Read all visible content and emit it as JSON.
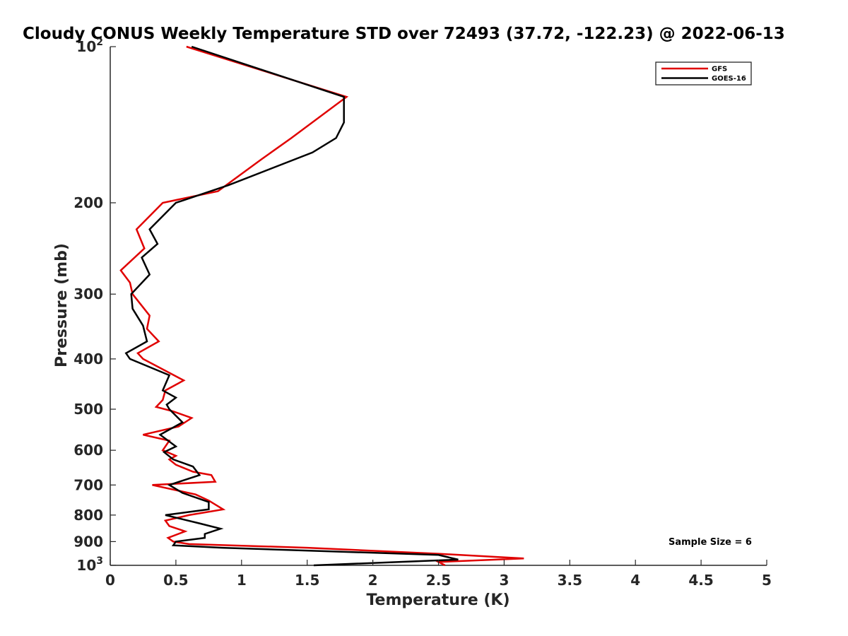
{
  "chart_data": {
    "type": "line",
    "title": "Cloudy CONUS Weekly Temperature STD over 72493 (37.72, -122.23) @ 2022-06-13",
    "xlabel": "Temperature (K)",
    "ylabel": "Pressure (mb)",
    "xlim": [
      0,
      5
    ],
    "ylim": [
      100,
      1000
    ],
    "y_scale": "log",
    "y_reversed": true,
    "x_ticks": [
      "0",
      "0.5",
      "1",
      "1.5",
      "2",
      "2.5",
      "3",
      "3.5",
      "4",
      "4.5",
      "5"
    ],
    "y_ticks": [
      {
        "value": 100,
        "label": "10",
        "sup": "2"
      },
      {
        "value": 200,
        "label": "200"
      },
      {
        "value": 300,
        "label": "300"
      },
      {
        "value": 400,
        "label": "400"
      },
      {
        "value": 500,
        "label": "500"
      },
      {
        "value": 600,
        "label": "600"
      },
      {
        "value": 700,
        "label": "700"
      },
      {
        "value": 800,
        "label": "800"
      },
      {
        "value": 900,
        "label": "900"
      },
      {
        "value": 1000,
        "label": "10",
        "sup": "3"
      }
    ],
    "legend": "top-right",
    "annotation": "Sample Size = 6",
    "series": [
      {
        "name": "GFS",
        "color": "#e00000",
        "points": [
          [
            0.58,
            100
          ],
          [
            1.8,
            125
          ],
          [
            1.38,
            150
          ],
          [
            1.15,
            165
          ],
          [
            0.82,
            190
          ],
          [
            0.4,
            200
          ],
          [
            0.2,
            225
          ],
          [
            0.26,
            245
          ],
          [
            0.08,
            270
          ],
          [
            0.15,
            285
          ],
          [
            0.17,
            300
          ],
          [
            0.3,
            330
          ],
          [
            0.28,
            350
          ],
          [
            0.37,
            370
          ],
          [
            0.21,
            390
          ],
          [
            0.25,
            400
          ],
          [
            0.56,
            440
          ],
          [
            0.42,
            460
          ],
          [
            0.4,
            480
          ],
          [
            0.35,
            495
          ],
          [
            0.48,
            505
          ],
          [
            0.62,
            520
          ],
          [
            0.52,
            540
          ],
          [
            0.25,
            560
          ],
          [
            0.45,
            575
          ],
          [
            0.4,
            600
          ],
          [
            0.5,
            615
          ],
          [
            0.45,
            625
          ],
          [
            0.5,
            640
          ],
          [
            0.63,
            660
          ],
          [
            0.77,
            670
          ],
          [
            0.8,
            690
          ],
          [
            0.32,
            700
          ],
          [
            0.65,
            730
          ],
          [
            0.75,
            750
          ],
          [
            0.86,
            780
          ],
          [
            0.6,
            800
          ],
          [
            0.42,
            820
          ],
          [
            0.45,
            840
          ],
          [
            0.57,
            860
          ],
          [
            0.44,
            885
          ],
          [
            0.48,
            900
          ],
          [
            0.6,
            910
          ],
          [
            1.5,
            925
          ],
          [
            2.5,
            950
          ],
          [
            3.15,
            970
          ],
          [
            2.5,
            985
          ],
          [
            2.55,
            1000
          ]
        ]
      },
      {
        "name": "GOES-16",
        "color": "#000000",
        "points": [
          [
            0.62,
            100
          ],
          [
            1.78,
            125
          ],
          [
            1.78,
            140
          ],
          [
            1.72,
            150
          ],
          [
            1.54,
            160
          ],
          [
            0.9,
            185
          ],
          [
            0.5,
            200
          ],
          [
            0.3,
            225
          ],
          [
            0.36,
            240
          ],
          [
            0.24,
            255
          ],
          [
            0.3,
            275
          ],
          [
            0.16,
            300
          ],
          [
            0.17,
            320
          ],
          [
            0.25,
            345
          ],
          [
            0.28,
            370
          ],
          [
            0.12,
            390
          ],
          [
            0.15,
            400
          ],
          [
            0.45,
            430
          ],
          [
            0.4,
            460
          ],
          [
            0.5,
            475
          ],
          [
            0.43,
            490
          ],
          [
            0.45,
            500
          ],
          [
            0.55,
            530
          ],
          [
            0.38,
            560
          ],
          [
            0.5,
            590
          ],
          [
            0.41,
            605
          ],
          [
            0.48,
            625
          ],
          [
            0.63,
            645
          ],
          [
            0.68,
            670
          ],
          [
            0.45,
            700
          ],
          [
            0.55,
            725
          ],
          [
            0.75,
            755
          ],
          [
            0.75,
            780
          ],
          [
            0.42,
            800
          ],
          [
            0.68,
            830
          ],
          [
            0.84,
            850
          ],
          [
            0.72,
            870
          ],
          [
            0.72,
            885
          ],
          [
            0.5,
            900
          ],
          [
            0.48,
            915
          ],
          [
            0.85,
            925
          ],
          [
            2.5,
            955
          ],
          [
            2.65,
            975
          ],
          [
            1.55,
            1000
          ]
        ]
      }
    ]
  }
}
